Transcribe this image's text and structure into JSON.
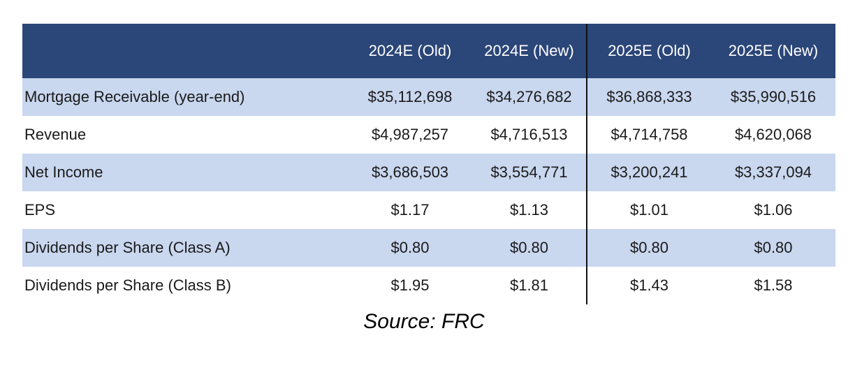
{
  "table": {
    "headers": [
      "",
      "2024E (Old)",
      "2024E (New)",
      "2025E (Old)",
      "2025E (New)"
    ],
    "rows": [
      {
        "label": "Mortgage Receivable (year-end)",
        "values": [
          "$35,112,698",
          "$34,276,682",
          "$36,868,333",
          "$35,990,516"
        ]
      },
      {
        "label": "Revenue",
        "values": [
          "$4,987,257",
          "$4,716,513",
          "$4,714,758",
          "$4,620,068"
        ]
      },
      {
        "label": "Net Income",
        "values": [
          "$3,686,503",
          "$3,554,771",
          "$3,200,241",
          "$3,337,094"
        ]
      },
      {
        "label": "EPS",
        "values": [
          "$1.17",
          "$1.13",
          "$1.01",
          "$1.06"
        ]
      },
      {
        "label": "Dividends per Share (Class A)",
        "values": [
          "$0.80",
          "$0.80",
          "$0.80",
          "$0.80"
        ]
      },
      {
        "label": "Dividends per Share (Class B)",
        "values": [
          "$1.95",
          "$1.81",
          "$1.43",
          "$1.58"
        ]
      }
    ]
  },
  "source": "Source: FRC",
  "colors": {
    "header_bg": "#2b4678",
    "shaded_row": "#c9d7ef"
  }
}
